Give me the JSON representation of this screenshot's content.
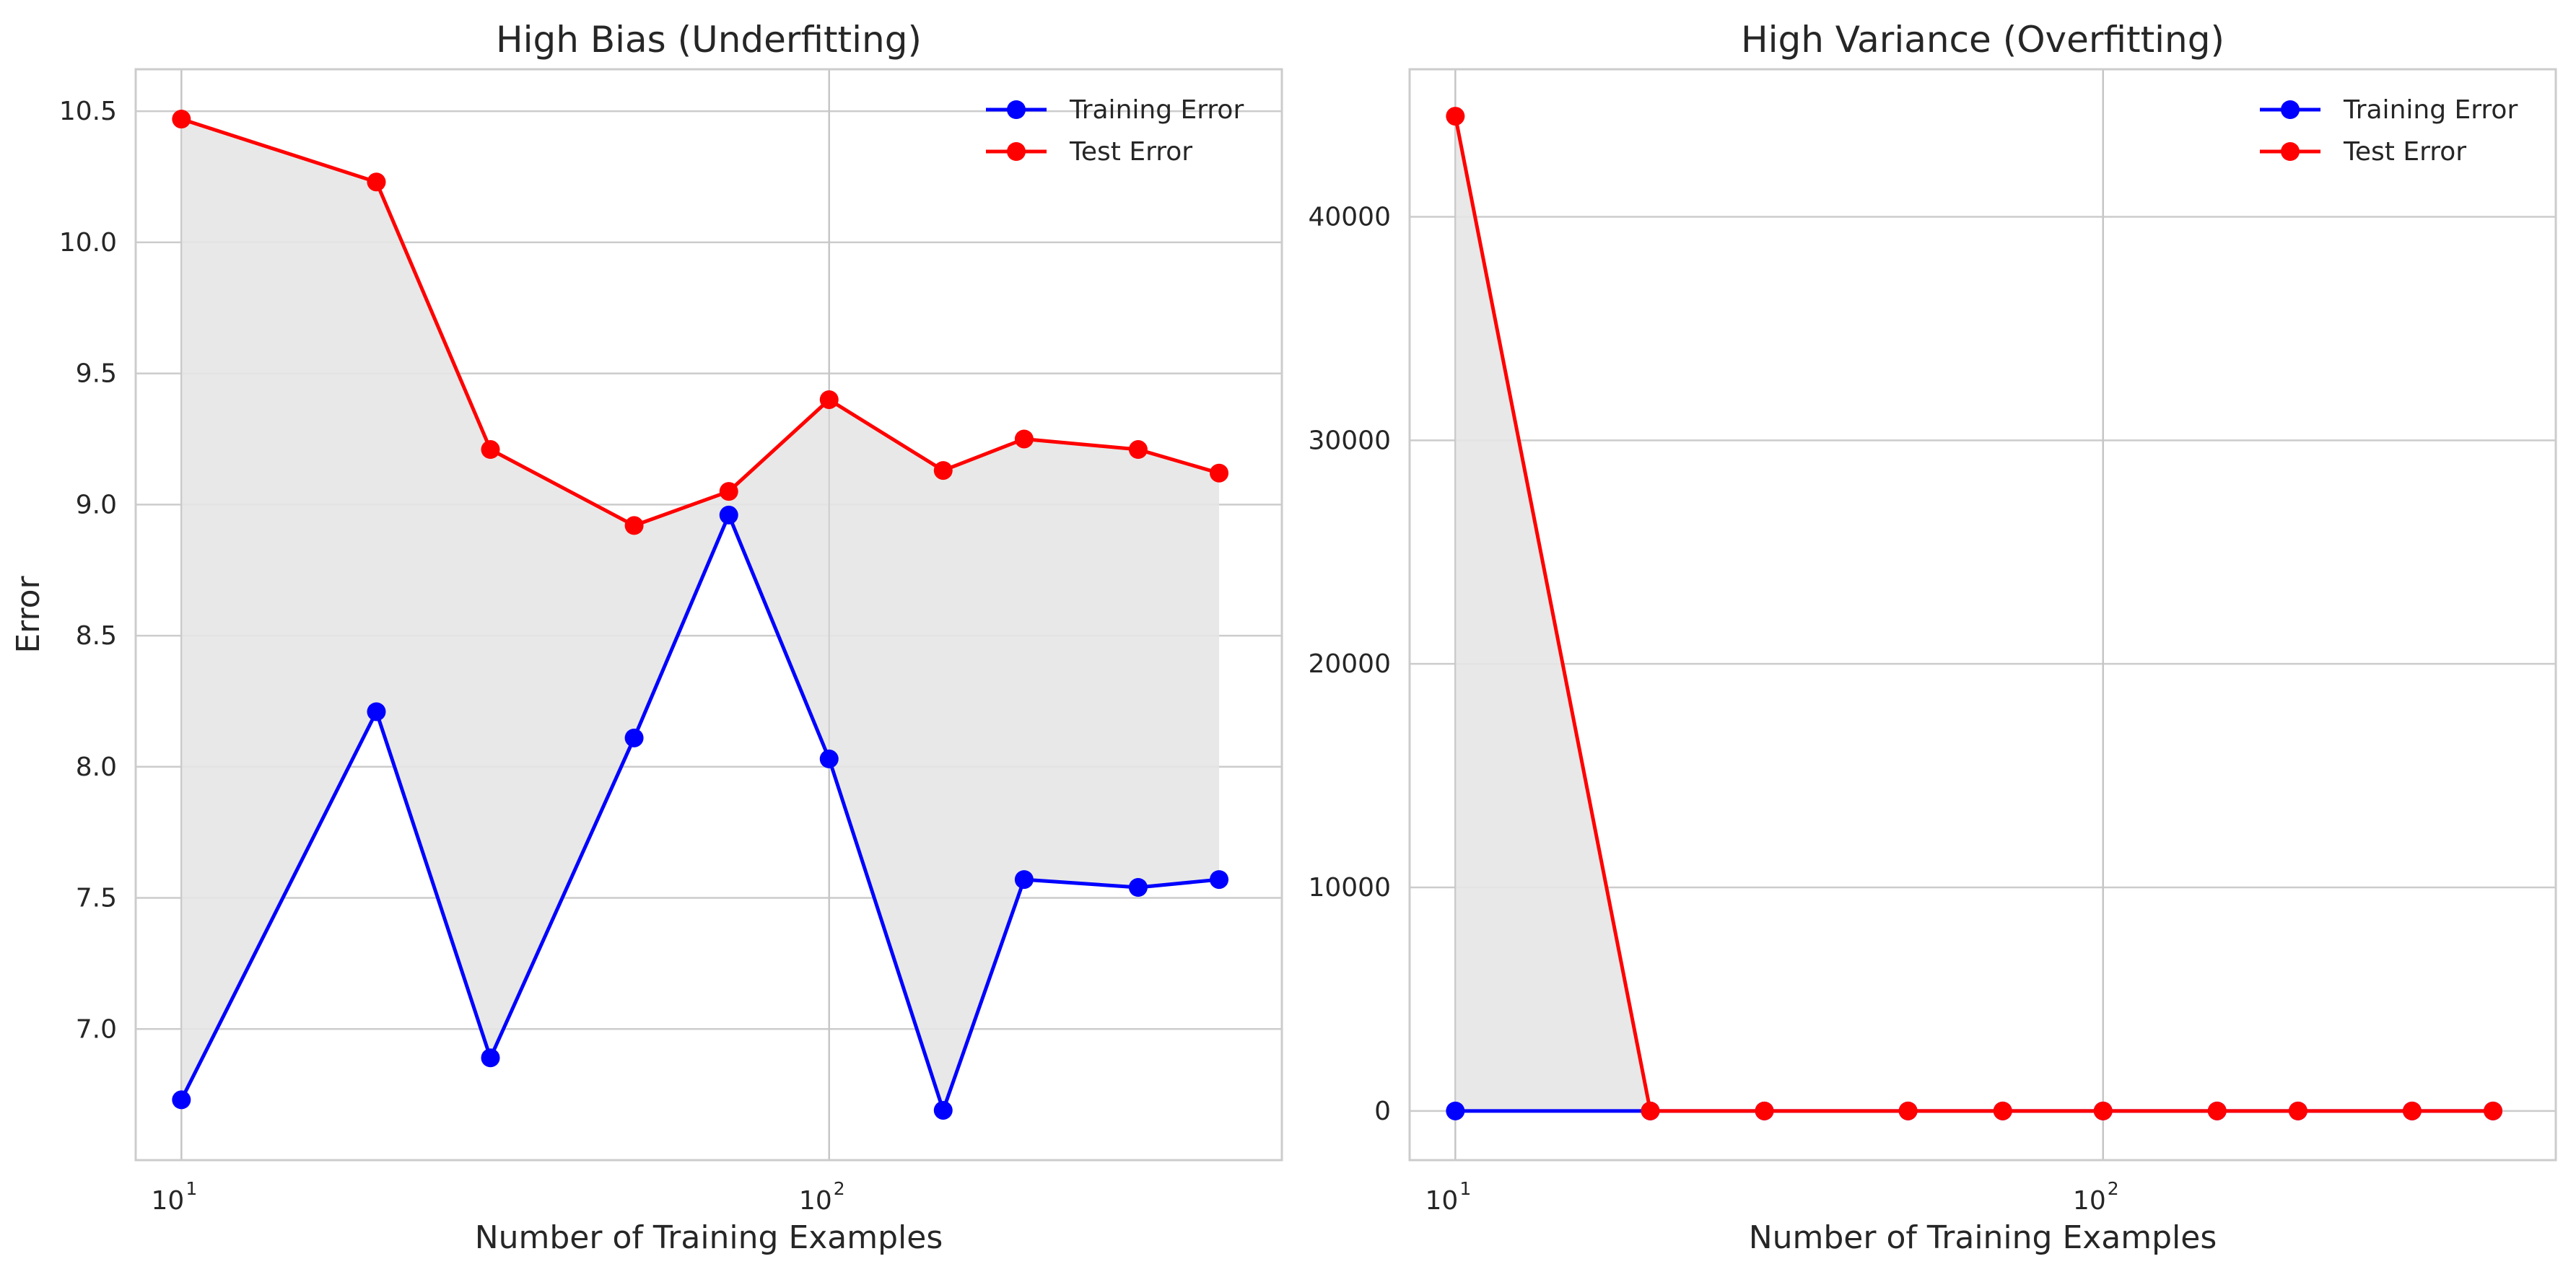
{
  "chart_data": [
    {
      "type": "line",
      "title": "High Bias (Underfitting)",
      "xlabel": "Number of Training Examples",
      "ylabel": "Error",
      "xscale": "log",
      "xlim": [
        8.5,
        500
      ],
      "ylim": [
        6.5,
        10.66
      ],
      "x": [
        10,
        20,
        30,
        50,
        70,
        100,
        150,
        200,
        300,
        400
      ],
      "xticks": [
        {
          "base": "10",
          "exp": "1",
          "value": 10
        },
        {
          "base": "10",
          "exp": "2",
          "value": 100
        }
      ],
      "yticks": [
        {
          "label": "7.0",
          "value": 7.0
        },
        {
          "label": "7.5",
          "value": 7.5
        },
        {
          "label": "8.0",
          "value": 8.0
        },
        {
          "label": "8.5",
          "value": 8.5
        },
        {
          "label": "9.0",
          "value": 9.0
        },
        {
          "label": "9.5",
          "value": 9.5
        },
        {
          "label": "10.0",
          "value": 10.0
        },
        {
          "label": "10.5",
          "value": 10.5
        }
      ],
      "series": [
        {
          "name": "Training Error",
          "color": "#0000ff",
          "values": [
            6.73,
            8.21,
            6.89,
            8.11,
            8.96,
            8.03,
            6.69,
            7.57,
            7.54,
            7.57
          ]
        },
        {
          "name": "Test Error",
          "color": "#ff0000",
          "values": [
            10.47,
            10.23,
            9.21,
            8.92,
            9.05,
            9.4,
            9.13,
            9.25,
            9.21,
            9.12
          ]
        }
      ],
      "fill_between": true,
      "fill_color": "#e5e5e5",
      "grid": true,
      "legend": "top-right"
    },
    {
      "type": "line",
      "title": "High Variance (Overfitting)",
      "xlabel": "Number of Training Examples",
      "ylabel": "",
      "xscale": "log",
      "xlim": [
        8.5,
        500
      ],
      "ylim": [
        -2200,
        46600
      ],
      "x": [
        10,
        20,
        30,
        50,
        70,
        100,
        150,
        200,
        300,
        400
      ],
      "xticks": [
        {
          "base": "10",
          "exp": "1",
          "value": 10
        },
        {
          "base": "10",
          "exp": "2",
          "value": 100
        }
      ],
      "yticks": [
        {
          "label": "0",
          "value": 0
        },
        {
          "label": "10000",
          "value": 10000
        },
        {
          "label": "20000",
          "value": 20000
        },
        {
          "label": "30000",
          "value": 30000
        },
        {
          "label": "40000",
          "value": 40000
        }
      ],
      "series": [
        {
          "name": "Training Error",
          "color": "#0000ff",
          "values": [
            0,
            0,
            0,
            0,
            0,
            0,
            0,
            0,
            0,
            0
          ]
        },
        {
          "name": "Test Error",
          "color": "#ff0000",
          "values": [
            44500,
            0,
            0,
            0,
            0,
            0,
            0,
            0,
            0,
            0
          ]
        }
      ],
      "fill_between": true,
      "fill_color": "#e5e5e5",
      "grid": true,
      "legend": "top-right"
    }
  ]
}
